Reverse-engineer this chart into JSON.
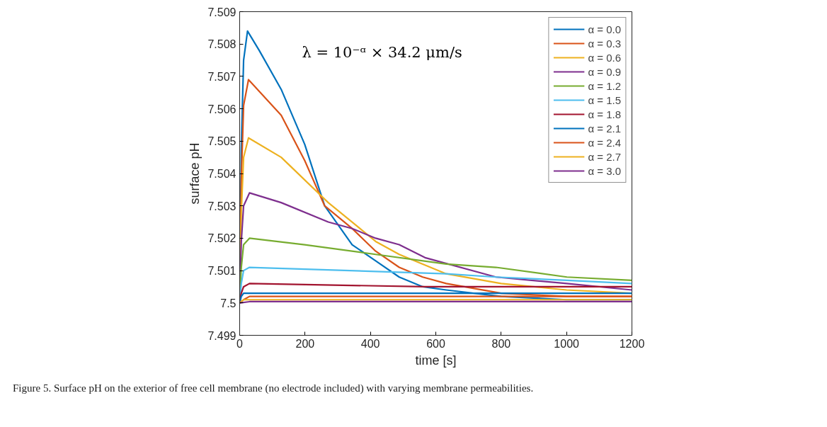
{
  "chart_data": {
    "type": "line",
    "xlabel": "time [s]",
    "ylabel": "surface pH",
    "xlim": [
      0,
      1200
    ],
    "xticks": [
      0,
      200,
      400,
      600,
      800,
      1000,
      1200
    ],
    "ylim": [
      7.499,
      7.509
    ],
    "yticks": [
      {
        "value": 7.499,
        "label": "7.499"
      },
      {
        "value": 7.5,
        "label": "7.5"
      },
      {
        "value": 7.501,
        "label": "7.501"
      },
      {
        "value": 7.502,
        "label": "7.502"
      },
      {
        "value": 7.503,
        "label": "7.503"
      },
      {
        "value": 7.504,
        "label": "7.504"
      },
      {
        "value": 7.505,
        "label": "7.505"
      },
      {
        "value": 7.506,
        "label": "7.506"
      },
      {
        "value": 7.507,
        "label": "7.507"
      },
      {
        "value": 7.508,
        "label": "7.508"
      },
      {
        "value": 7.509,
        "label": "7.509"
      }
    ],
    "grid": false,
    "legend": "top right",
    "marker": "none",
    "line_style": "solid",
    "annotations": [
      "λ = 10⁻ᵅ × 34.2 μm/s",
      "Figure 5. Surface pH on the exterior of free cell membrane (no electrode included) with varying membrane permeabilities."
    ],
    "series": [
      {
        "name": "α = 0.0",
        "color": "#0072bd",
        "x": [
          0,
          5,
          12,
          24,
          60,
          127,
          199,
          260,
          344,
          416,
          488,
          560,
          632,
          800,
          1000,
          1200
        ],
        "values": [
          7.5,
          7.5048,
          7.5075,
          7.5084,
          7.5078,
          7.5066,
          7.5049,
          7.503,
          7.5018,
          7.5013,
          7.5008,
          7.5005,
          7.5004,
          7.5002,
          7.5001,
          7.5001
        ]
      },
      {
        "name": "α = 0.3",
        "color": "#d95319",
        "x": [
          0,
          5,
          12,
          27,
          127,
          199,
          260,
          344,
          416,
          488,
          560,
          632,
          800,
          1000,
          1200
        ],
        "values": [
          7.5,
          7.5038,
          7.5061,
          7.5069,
          7.5058,
          7.5044,
          7.503,
          7.5023,
          7.5016,
          7.5011,
          7.5008,
          7.5006,
          7.5003,
          7.5002,
          7.5002
        ]
      },
      {
        "name": "α = 0.6",
        "color": "#edb120",
        "x": [
          0,
          5,
          12,
          27,
          127,
          199,
          271,
          344,
          416,
          488,
          560,
          632,
          800,
          1000,
          1200
        ],
        "values": [
          7.5,
          7.5028,
          7.5045,
          7.5051,
          7.5045,
          7.5038,
          7.5031,
          7.5025,
          7.5019,
          7.5015,
          7.5012,
          7.5009,
          7.5006,
          7.5004,
          7.5003
        ]
      },
      {
        "name": "α = 0.9",
        "color": "#7e2f8e",
        "x": [
          0,
          5,
          12,
          30,
          127,
          271,
          344,
          416,
          488,
          567,
          784,
          1001,
          1200
        ],
        "values": [
          7.5,
          7.5019,
          7.503,
          7.5034,
          7.5031,
          7.5025,
          7.5023,
          7.502,
          7.5018,
          7.5014,
          7.5008,
          7.5006,
          7.5004
        ]
      },
      {
        "name": "α = 1.2",
        "color": "#77ac30",
        "x": [
          0,
          5,
          12,
          30,
          199,
          416,
          632,
          784,
          1001,
          1200
        ],
        "values": [
          7.5,
          7.5011,
          7.5018,
          7.502,
          7.5018,
          7.5015,
          7.5012,
          7.5011,
          7.5008,
          7.5007
        ]
      },
      {
        "name": "α = 1.5",
        "color": "#4dbeee",
        "x": [
          0,
          5,
          12,
          30,
          632,
          784,
          1001,
          1200
        ],
        "values": [
          7.5,
          7.5006,
          7.501,
          7.5011,
          7.5009,
          7.5008,
          7.5007,
          7.5006
        ]
      },
      {
        "name": "α = 1.8",
        "color": "#a2142f",
        "x": [
          0,
          5,
          12,
          30,
          567,
          1200
        ],
        "values": [
          7.5,
          7.5003,
          7.5005,
          7.5006,
          7.5005,
          7.5005
        ]
      },
      {
        "name": "α = 2.1",
        "color": "#0072bd",
        "x": [
          0,
          5,
          12,
          30,
          1200
        ],
        "values": [
          7.5,
          7.5002,
          7.5003,
          7.5003,
          7.5003
        ]
      },
      {
        "name": "α = 2.4",
        "color": "#d95319",
        "x": [
          0,
          12,
          30,
          1200
        ],
        "values": [
          7.5,
          7.5001,
          7.5002,
          7.5002
        ]
      },
      {
        "name": "α = 2.7",
        "color": "#edb120",
        "x": [
          0,
          12,
          30,
          1200
        ],
        "values": [
          7.5,
          7.5001,
          7.5001,
          7.5001
        ]
      },
      {
        "name": "α = 3.0",
        "color": "#7e2f8e",
        "x": [
          0,
          30,
          1200
        ],
        "values": [
          7.5,
          7.50004,
          7.50004
        ]
      }
    ]
  }
}
